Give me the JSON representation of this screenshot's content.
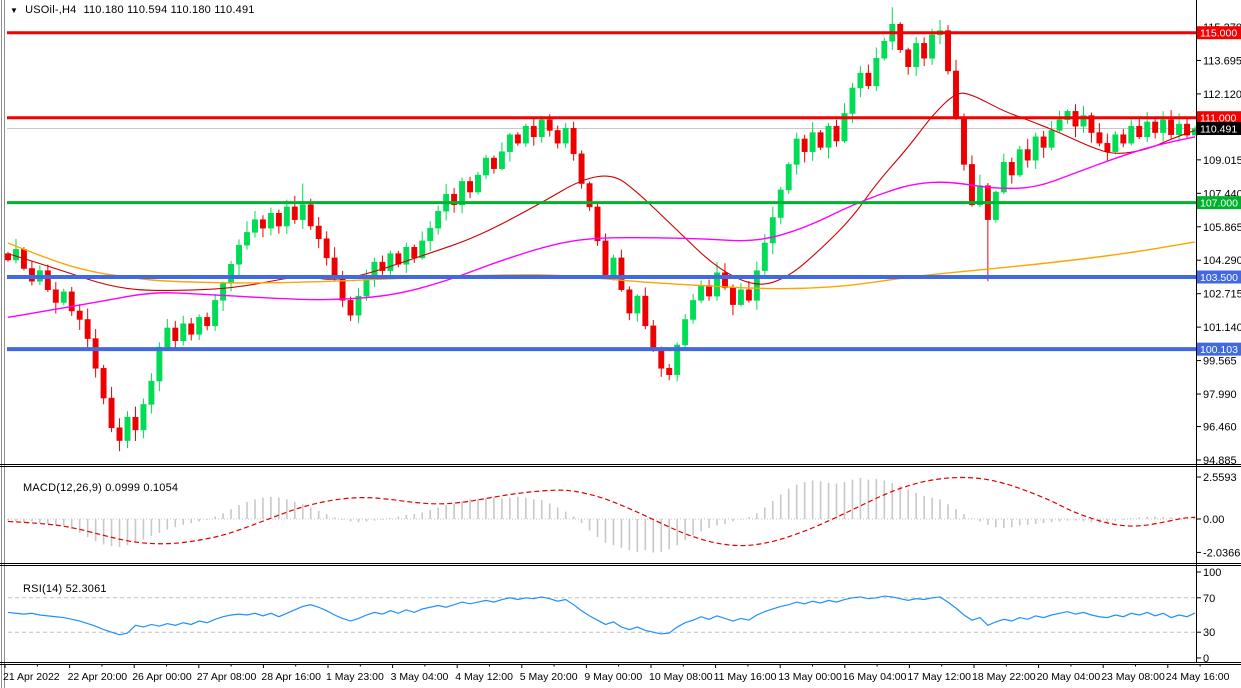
{
  "window": {
    "title": "USOil-,H4"
  },
  "main_chart": {
    "header_symbol": "USOil-,H4",
    "header_ohlc": "110.180 110.594 110.180 110.491",
    "y_ticks": [
      "115.270",
      "113.695",
      "112.120",
      "109.015",
      "107.440",
      "105.865",
      "104.290",
      "102.715",
      "101.140",
      "99.565",
      "97.990",
      "96.460",
      "94.885"
    ],
    "levels": [
      {
        "price": 115.0,
        "label": "115.000",
        "color": "#F40000",
        "width": 3
      },
      {
        "price": 111.0,
        "label": "111.000",
        "color": "#F40000",
        "width": 3
      },
      {
        "price": 107.0,
        "label": "107.000",
        "color": "#00B22B",
        "width": 3
      },
      {
        "price": 103.5,
        "label": "103.500",
        "color": "#4169E1",
        "width": 4
      },
      {
        "price": 100.103,
        "label": "100.103",
        "color": "#4169E1",
        "width": 4
      }
    ],
    "current_price": {
      "value": 110.491,
      "label": "110.491",
      "line_color": "#C8C8C8",
      "label_bg": "#000000"
    }
  },
  "macd_panel": {
    "header": "MACD(12,26,9) 0.0999 0.1054",
    "y_ticks": [
      "2.5593",
      "0.00",
      "-2.0366"
    ]
  },
  "rsi_panel": {
    "header": "RSI(14) 52.3061",
    "y_ticks": [
      "100",
      "70",
      "30",
      "0"
    ]
  },
  "x_axis": {
    "labels": [
      "21 Apr 2022",
      "22 Apr 20:00",
      "26 Apr 00:00",
      "27 Apr 08:00",
      "28 Apr 16:00",
      "1 May 23:00",
      "3 May 04:00",
      "4 May 12:00",
      "5 May 20:00",
      "9 May 00:00",
      "10 May 08:00",
      "11 May 16:00",
      "13 May 00:00",
      "16 May 04:00",
      "17 May 12:00",
      "18 May 22:00",
      "20 May 04:00",
      "23 May 08:00",
      "24 May 16:00"
    ]
  },
  "colors": {
    "bull": "#00DC55",
    "bear": "#EE0000",
    "ma_fast": "#CC0000",
    "ma_mid": "#FF00FF",
    "ma_slow": "#FFA500",
    "macd_hist": "#C8C8C8",
    "macd_signal": "#E00000",
    "rsi_line": "#1E90FF",
    "dashed_level": "#C0C0C0",
    "axis_text": "#000000",
    "border": "#000000",
    "window_edge": "#909090"
  },
  "chart_data": [
    {
      "type": "candlestick",
      "symbol": "USOil-",
      "timeframe": "H4",
      "last_ohlc": {
        "open": 110.18,
        "high": 110.594,
        "low": 110.18,
        "close": 110.491
      },
      "first_open": 104.6,
      "ylim": [
        94.7,
        116.5
      ],
      "horizontal_levels": [
        115.0,
        111.0,
        107.0,
        103.5,
        100.103
      ],
      "closes": [
        104.3,
        104.8,
        103.9,
        103.3,
        103.8,
        102.9,
        102.3,
        102.8,
        101.9,
        101.5,
        100.6,
        99.2,
        97.8,
        96.4,
        95.8,
        96.9,
        96.3,
        97.5,
        98.6,
        100.2,
        101.1,
        100.5,
        101.3,
        100.8,
        101.6,
        101.2,
        102.4,
        103.2,
        104.1,
        105.0,
        105.6,
        106.2,
        105.8,
        106.5,
        105.9,
        106.8,
        106.2,
        106.9,
        105.9,
        105.3,
        104.4,
        103.5,
        102.4,
        101.7,
        102.6,
        103.4,
        104.2,
        103.8,
        104.6,
        104.1,
        104.9,
        104.4,
        105.2,
        105.8,
        106.6,
        107.4,
        106.9,
        108.0,
        107.5,
        108.3,
        109.1,
        108.6,
        109.4,
        110.2,
        109.8,
        110.6,
        110.1,
        110.9,
        110.4,
        109.8,
        110.5,
        109.3,
        107.9,
        106.8,
        105.2,
        103.6,
        104.4,
        102.9,
        101.8,
        102.6,
        101.2,
        100.1,
        99.2,
        98.9,
        100.3,
        101.5,
        102.4,
        103.1,
        102.6,
        103.7,
        103.0,
        102.2,
        102.9,
        102.4,
        103.8,
        105.1,
        106.3,
        107.6,
        108.8,
        110.0,
        109.4,
        110.3,
        109.6,
        110.6,
        109.9,
        111.2,
        112.4,
        113.1,
        112.5,
        113.8,
        114.6,
        115.4,
        114.2,
        113.4,
        114.5,
        113.8,
        114.9,
        115.1,
        113.2,
        111.0,
        108.8,
        106.9,
        107.8,
        106.2,
        107.5,
        108.9,
        108.3,
        109.5,
        109.0,
        110.1,
        109.6,
        110.4,
        110.9,
        111.3,
        110.6,
        111.1,
        110.3,
        109.8,
        109.4,
        110.2,
        109.8,
        110.6,
        110.1,
        110.8,
        110.3,
        110.9,
        110.2,
        110.7,
        110.18,
        110.491
      ],
      "wick_overrides": {
        "14": {
          "low": 95.3
        },
        "37": {
          "high": 107.9
        },
        "111": {
          "high": 116.2
        },
        "117": {
          "high": 115.6
        },
        "123": {
          "low": 103.3
        },
        "149": {
          "high": 110.594,
          "low": 110.18
        }
      },
      "moving_averages": [
        {
          "name": "ma-fast-red",
          "color": "#CC0000",
          "points": [
            [
              0,
              104.6
            ],
            [
              6,
              103.9
            ],
            [
              14,
              102.9
            ],
            [
              22,
              102.85
            ],
            [
              29,
              103.0
            ],
            [
              37,
              103.6
            ],
            [
              40,
              103.35
            ],
            [
              44,
              103.5
            ],
            [
              52,
              104.5
            ],
            [
              59,
              105.4
            ],
            [
              67,
              107.0
            ],
            [
              72,
              108.1
            ],
            [
              76,
              108.35
            ],
            [
              79,
              107.5
            ],
            [
              84,
              105.7
            ],
            [
              89,
              103.9
            ],
            [
              94,
              103.0
            ],
            [
              98,
              103.5
            ],
            [
              102,
              104.8
            ],
            [
              106,
              106.3
            ],
            [
              109,
              107.9
            ],
            [
              113,
              109.6
            ],
            [
              116,
              111.1
            ],
            [
              119,
              112.2
            ],
            [
              121,
              112.1
            ],
            [
              125,
              111.3
            ],
            [
              128,
              110.9
            ],
            [
              132,
              110.3
            ],
            [
              136,
              109.6
            ],
            [
              139,
              109.25
            ],
            [
              143,
              109.5
            ],
            [
              146,
              110.0
            ],
            [
              149,
              110.4
            ]
          ]
        },
        {
          "name": "ma-mid-magenta",
          "color": "#FF00FF",
          "points": [
            [
              0,
              101.6
            ],
            [
              11,
              102.3
            ],
            [
              18,
              102.8
            ],
            [
              24,
              102.7
            ],
            [
              33,
              102.5
            ],
            [
              40,
              102.4
            ],
            [
              48,
              102.6
            ],
            [
              55,
              103.3
            ],
            [
              62,
              104.3
            ],
            [
              69,
              105.1
            ],
            [
              74,
              105.35
            ],
            [
              81,
              105.35
            ],
            [
              87,
              105.3
            ],
            [
              94,
              105.15
            ],
            [
              100,
              105.8
            ],
            [
              106,
              106.9
            ],
            [
              111,
              107.6
            ],
            [
              114,
              107.9
            ],
            [
              118,
              108.0
            ],
            [
              124,
              107.65
            ],
            [
              129,
              107.7
            ],
            [
              134,
              108.4
            ],
            [
              139,
              109.1
            ],
            [
              144,
              109.7
            ],
            [
              149,
              110.1
            ]
          ]
        },
        {
          "name": "ma-slow-orange",
          "color": "#FFA500",
          "points": [
            [
              0,
              105.1
            ],
            [
              6,
              104.2
            ],
            [
              11,
              103.7
            ],
            [
              15,
              103.5
            ],
            [
              19,
              103.3
            ],
            [
              30,
              103.2
            ],
            [
              40,
              103.28
            ],
            [
              53,
              103.5
            ],
            [
              64,
              103.62
            ],
            [
              69,
              103.58
            ],
            [
              74,
              103.45
            ],
            [
              80,
              103.25
            ],
            [
              87,
              103.1
            ],
            [
              94,
              102.95
            ],
            [
              100,
              102.95
            ],
            [
              106,
              103.1
            ],
            [
              114,
              103.55
            ],
            [
              124,
              103.9
            ],
            [
              134,
              104.3
            ],
            [
              142,
              104.7
            ],
            [
              149,
              105.15
            ]
          ]
        }
      ]
    },
    {
      "type": "macd",
      "params": "12,26,9",
      "last_values": {
        "macd": 0.0999,
        "signal": 0.1054
      },
      "ylim": [
        -2.9,
        3.2
      ],
      "histogram": [
        -0.1,
        -0.15,
        -0.2,
        -0.15,
        -0.25,
        -0.3,
        -0.35,
        -0.4,
        -0.6,
        -0.85,
        -1.1,
        -1.35,
        -1.55,
        -1.65,
        -1.7,
        -1.6,
        -1.45,
        -1.25,
        -1.05,
        -0.85,
        -0.65,
        -0.5,
        -0.35,
        -0.25,
        -0.15,
        -0.05,
        0.15,
        0.35,
        0.6,
        0.85,
        1.05,
        1.2,
        1.3,
        1.35,
        1.3,
        1.2,
        1.05,
        0.9,
        0.7,
        0.5,
        0.3,
        0.1,
        -0.05,
        -0.15,
        -0.2,
        -0.15,
        -0.1,
        -0.05,
        0.05,
        0.15,
        0.25,
        0.3,
        0.4,
        0.55,
        0.7,
        0.85,
        0.95,
        1.1,
        1.2,
        1.25,
        1.3,
        1.3,
        1.25,
        1.3,
        1.35,
        1.3,
        1.2,
        1.15,
        0.95,
        0.7,
        0.45,
        0.15,
        -0.25,
        -0.7,
        -1.1,
        -1.45,
        -1.6,
        -1.75,
        -1.9,
        -2.0,
        -1.9,
        -2.04,
        -2.0,
        -1.85,
        -1.6,
        -1.3,
        -1.0,
        -0.75,
        -0.55,
        -0.4,
        -0.3,
        -0.15,
        -0.05,
        0.1,
        0.35,
        0.7,
        1.1,
        1.5,
        1.85,
        2.1,
        2.25,
        2.35,
        2.3,
        2.2,
        2.15,
        2.25,
        2.4,
        2.5,
        2.4,
        2.45,
        2.35,
        2.2,
        2.0,
        1.8,
        1.6,
        1.4,
        1.3,
        1.2,
        0.9,
        0.6,
        0.3,
        0.05,
        -0.15,
        -0.35,
        -0.5,
        -0.55,
        -0.5,
        -0.4,
        -0.35,
        -0.3,
        -0.25,
        -0.2,
        -0.15,
        -0.1,
        -0.1,
        -0.15,
        -0.2,
        -0.25,
        -0.2,
        -0.12,
        -0.05,
        0.05,
        0.1,
        0.15,
        0.15,
        0.12,
        0.1,
        0.08,
        0.09,
        0.0999
      ],
      "signal_points": [
        [
          0,
          -0.15
        ],
        [
          4,
          -0.25
        ],
        [
          8,
          -0.5
        ],
        [
          12,
          -1.0
        ],
        [
          15,
          -1.35
        ],
        [
          18,
          -1.52
        ],
        [
          21,
          -1.5
        ],
        [
          24,
          -1.3
        ],
        [
          27,
          -1.0
        ],
        [
          30,
          -0.5
        ],
        [
          33,
          0.05
        ],
        [
          36,
          0.6
        ],
        [
          39,
          1.0
        ],
        [
          42,
          1.25
        ],
        [
          45,
          1.33
        ],
        [
          48,
          1.2
        ],
        [
          51,
          1.0
        ],
        [
          54,
          0.9
        ],
        [
          57,
          1.0
        ],
        [
          60,
          1.25
        ],
        [
          63,
          1.5
        ],
        [
          66,
          1.68
        ],
        [
          69,
          1.78
        ],
        [
          71,
          1.72
        ],
        [
          74,
          1.4
        ],
        [
          77,
          0.85
        ],
        [
          80,
          0.2
        ],
        [
          83,
          -0.5
        ],
        [
          86,
          -1.1
        ],
        [
          89,
          -1.5
        ],
        [
          92,
          -1.66
        ],
        [
          95,
          -1.5
        ],
        [
          98,
          -1.1
        ],
        [
          101,
          -0.55
        ],
        [
          104,
          0.1
        ],
        [
          107,
          0.8
        ],
        [
          110,
          1.5
        ],
        [
          113,
          2.05
        ],
        [
          116,
          2.4
        ],
        [
          119,
          2.55
        ],
        [
          122,
          2.5
        ],
        [
          125,
          2.2
        ],
        [
          128,
          1.7
        ],
        [
          131,
          1.1
        ],
        [
          133,
          0.6
        ],
        [
          135,
          0.2
        ],
        [
          137,
          -0.12
        ],
        [
          139,
          -0.35
        ],
        [
          141,
          -0.45
        ],
        [
          143,
          -0.38
        ],
        [
          145,
          -0.2
        ],
        [
          147,
          0.0
        ],
        [
          148,
          0.08
        ],
        [
          149,
          0.105
        ]
      ]
    },
    {
      "type": "rsi",
      "period": 14,
      "last_value": 52.3061,
      "overbought": 70,
      "oversold": 30,
      "ylim": [
        0,
        100
      ],
      "values": [
        53,
        52,
        51,
        52,
        50,
        49,
        48,
        47,
        45,
        43,
        40,
        37,
        33,
        30,
        27,
        29,
        38,
        36,
        39,
        37,
        40,
        38,
        41,
        39,
        43,
        41,
        45,
        48,
        50,
        51,
        50,
        52,
        49,
        52,
        48,
        52,
        56,
        60,
        62,
        59,
        55,
        50,
        46,
        43,
        46,
        50,
        53,
        51,
        55,
        52,
        56,
        53,
        57,
        59,
        61,
        59,
        62,
        65,
        63,
        65,
        67,
        65,
        68,
        70,
        68,
        70,
        69,
        71,
        69,
        66,
        68,
        62,
        55,
        49,
        44,
        39,
        42,
        36,
        33,
        36,
        32,
        30,
        28,
        29,
        36,
        41,
        44,
        48,
        45,
        49,
        46,
        43,
        46,
        44,
        50,
        54,
        57,
        60,
        62,
        65,
        63,
        66,
        64,
        67,
        65,
        68,
        70,
        71,
        69,
        70,
        72,
        71,
        69,
        67,
        69,
        68,
        70,
        71,
        65,
        58,
        50,
        44,
        47,
        38,
        42,
        45,
        43,
        47,
        45,
        49,
        47,
        50,
        52,
        54,
        51,
        53,
        50,
        48,
        47,
        50,
        48,
        52,
        50,
        53,
        49,
        52,
        47,
        50,
        48,
        52.3
      ]
    }
  ]
}
